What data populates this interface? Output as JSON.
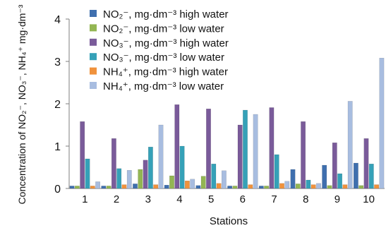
{
  "chart_data": {
    "type": "bar",
    "xlabel": "Stations",
    "ylabel": "Concentration of NO₂⁻, NO₃⁻, NH₄⁺ mg·dm⁻³",
    "ylim": [
      0,
      4
    ],
    "yticks": [
      "0",
      "1",
      "2",
      "3",
      "4"
    ],
    "grid": false,
    "legend_position": "top-left",
    "categories": [
      "1",
      "2",
      "3",
      "4",
      "5",
      "6",
      "7",
      "8",
      "9",
      "10"
    ],
    "series": [
      {
        "name": "NO₂⁻, mg·dm⁻³ high water",
        "color": "#3f6fae",
        "values": [
          0.06,
          0.06,
          0.11,
          0.08,
          0.07,
          0.06,
          0.06,
          0.45,
          0.55,
          0.6
        ]
      },
      {
        "name": "NO₂⁻, mg·dm⁻³ low water",
        "color": "#93b653",
        "values": [
          0.06,
          0.06,
          0.45,
          0.3,
          0.29,
          0.06,
          0.06,
          0.11,
          0.07,
          0.07
        ]
      },
      {
        "name": "NO₃⁻, mg·dm⁻³ high water",
        "color": "#7a5b9a",
        "values": [
          1.58,
          1.18,
          0.67,
          1.98,
          1.88,
          1.5,
          1.91,
          1.58,
          1.08,
          1.18
        ]
      },
      {
        "name": "NO₃⁻, mg·dm⁻³ low water",
        "color": "#35a1b8",
        "values": [
          0.7,
          0.47,
          0.98,
          1.0,
          0.58,
          1.85,
          0.8,
          0.2,
          0.35,
          0.58
        ]
      },
      {
        "name": "NH₄⁺, mg·dm⁻³ high water",
        "color": "#f0923c",
        "values": [
          0.06,
          0.09,
          0.09,
          0.18,
          0.12,
          0.09,
          0.12,
          0.09,
          0.09,
          0.09
        ]
      },
      {
        "name": "NH₄⁺, mg·dm⁻³ low water",
        "color": "#a8bde0",
        "values": [
          0.16,
          0.43,
          1.5,
          0.22,
          0.42,
          1.75,
          0.17,
          0.12,
          2.06,
          3.08
        ]
      }
    ]
  }
}
